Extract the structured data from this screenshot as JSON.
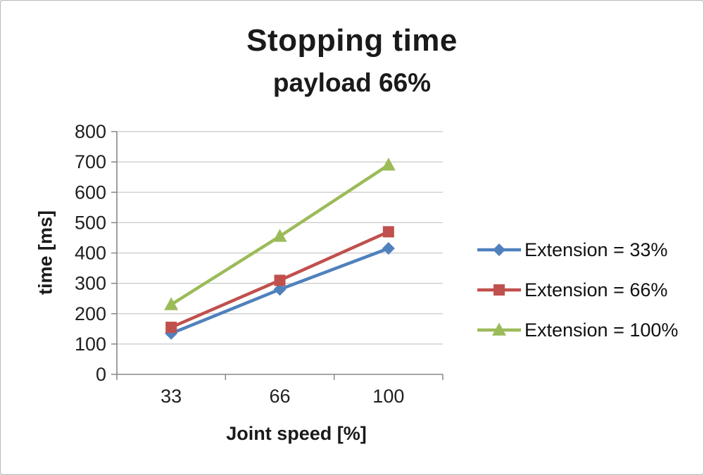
{
  "chart_data": {
    "type": "line",
    "title": "Stopping time",
    "subtitle": "payload 66%",
    "xlabel": "Joint speed [%]",
    "ylabel": "time [ms]",
    "categories": [
      "33",
      "66",
      "100"
    ],
    "series": [
      {
        "name": "Extension = 33%",
        "values": [
          135,
          280,
          415
        ],
        "color": "#4f81bd",
        "marker": "diamond"
      },
      {
        "name": "Extension = 66%",
        "values": [
          155,
          310,
          470
        ],
        "color": "#c0504d",
        "marker": "square"
      },
      {
        "name": "Extension = 100%",
        "values": [
          230,
          455,
          690
        ],
        "color": "#9bbb59",
        "marker": "triangle"
      }
    ],
    "ylim": [
      0,
      800
    ],
    "ytick_step": 100,
    "grid": true,
    "legend_position": "right",
    "colors": {
      "grid": "#c9c9c9",
      "axis": "#878787",
      "tick_text": "#1f1f1f"
    }
  }
}
